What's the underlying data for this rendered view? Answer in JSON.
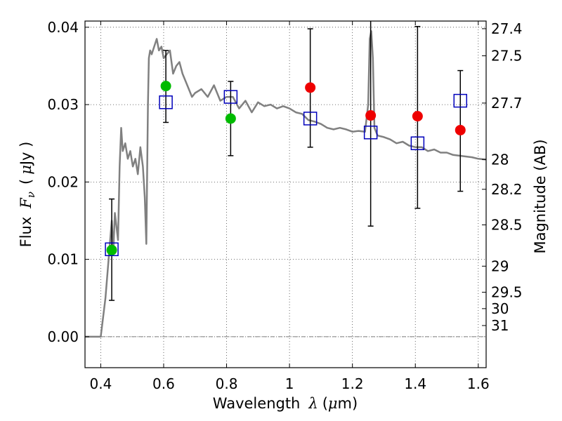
{
  "chart_data": {
    "type": "scatter",
    "xlabel": {
      "text": "Wavelength",
      "symbol": "λ",
      "unit_open": "(",
      "unit_mu": "μ",
      "unit_rest": "m)"
    },
    "ylabel": {
      "text": "Flux",
      "symbol": "F",
      "subscript": "ν",
      "unit_open": "(",
      "unit_mu": "μ",
      "unit_rest": "Jy )"
    },
    "y2label": "Magnitude (AB)",
    "xlim": [
      0.35,
      1.625
    ],
    "ylim": [
      -0.004,
      0.0408
    ],
    "xticks": [
      {
        "value": 0.4,
        "label": "0.4"
      },
      {
        "value": 0.6,
        "label": "0.6"
      },
      {
        "value": 0.8,
        "label": "0.8"
      },
      {
        "value": 1.0,
        "label": "1"
      },
      {
        "value": 1.2,
        "label": "1.2"
      },
      {
        "value": 1.4,
        "label": "1.4"
      },
      {
        "value": 1.6,
        "label": "1.6"
      }
    ],
    "yticks": [
      {
        "value": 0.0,
        "label": "0.00"
      },
      {
        "value": 0.01,
        "label": "0.01"
      },
      {
        "value": 0.02,
        "label": "0.02"
      },
      {
        "value": 0.03,
        "label": "0.03"
      },
      {
        "value": 0.04,
        "label": "0.04"
      }
    ],
    "magnitude_ticks": [
      {
        "mag": 27.4,
        "label": "27.4"
      },
      {
        "mag": 27.5,
        "label": "27.5"
      },
      {
        "mag": 27.7,
        "label": "27.7"
      },
      {
        "mag": 28.0,
        "label": "28"
      },
      {
        "mag": 28.2,
        "label": "28.2"
      },
      {
        "mag": 28.5,
        "label": "28.5"
      },
      {
        "mag": 29.0,
        "label": "29"
      },
      {
        "mag": 29.5,
        "label": "29.5"
      },
      {
        "mag": 30.0,
        "label": "30"
      },
      {
        "mag": 31.0,
        "label": "31"
      }
    ],
    "grid": true,
    "colors": {
      "model": "#808080",
      "green": "#00bb00",
      "red": "#ee0000",
      "square": "#0000bb",
      "errorbar": "#000000"
    },
    "model_spectrum": {
      "name": "model SED",
      "x": [
        0.35,
        0.4,
        0.415,
        0.425,
        0.435,
        0.44,
        0.445,
        0.455,
        0.46,
        0.465,
        0.47,
        0.478,
        0.486,
        0.494,
        0.502,
        0.51,
        0.518,
        0.526,
        0.534,
        0.54,
        0.545,
        0.55,
        0.553,
        0.557,
        0.562,
        0.57,
        0.578,
        0.585,
        0.593,
        0.6,
        0.61,
        0.62,
        0.63,
        0.64,
        0.65,
        0.66,
        0.67,
        0.68,
        0.69,
        0.7,
        0.72,
        0.74,
        0.76,
        0.78,
        0.8,
        0.82,
        0.84,
        0.86,
        0.88,
        0.9,
        0.92,
        0.94,
        0.96,
        0.98,
        1.0,
        1.02,
        1.04,
        1.06,
        1.08,
        1.1,
        1.12,
        1.14,
        1.16,
        1.18,
        1.2,
        1.22,
        1.24,
        1.25,
        1.255,
        1.26,
        1.265,
        1.27,
        1.28,
        1.3,
        1.32,
        1.34,
        1.36,
        1.38,
        1.4,
        1.42,
        1.44,
        1.46,
        1.48,
        1.5,
        1.52,
        1.54,
        1.56,
        1.58,
        1.6,
        1.625
      ],
      "y": [
        0.0,
        0.0,
        0.005,
        0.01,
        0.015,
        0.011,
        0.016,
        0.0125,
        0.022,
        0.027,
        0.024,
        0.025,
        0.023,
        0.024,
        0.022,
        0.023,
        0.021,
        0.0245,
        0.022,
        0.018,
        0.012,
        0.03,
        0.036,
        0.037,
        0.0365,
        0.0375,
        0.0385,
        0.037,
        0.0375,
        0.036,
        0.0365,
        0.037,
        0.034,
        0.035,
        0.0355,
        0.034,
        0.033,
        0.032,
        0.031,
        0.0315,
        0.032,
        0.031,
        0.0325,
        0.0305,
        0.031,
        0.031,
        0.0295,
        0.0305,
        0.029,
        0.0303,
        0.0298,
        0.03,
        0.0295,
        0.0298,
        0.0295,
        0.029,
        0.0288,
        0.028,
        0.0278,
        0.0275,
        0.027,
        0.0268,
        0.027,
        0.0268,
        0.0265,
        0.0266,
        0.0265,
        0.03,
        0.0385,
        0.0395,
        0.036,
        0.027,
        0.026,
        0.0258,
        0.0255,
        0.025,
        0.0252,
        0.0247,
        0.0245,
        0.0245,
        0.024,
        0.0242,
        0.0238,
        0.0238,
        0.0235,
        0.0234,
        0.0233,
        0.0232,
        0.023,
        0.0229
      ]
    },
    "error_bars": [
      {
        "x": 0.435,
        "low": 0.0047,
        "high": 0.0178
      },
      {
        "x": 0.607,
        "low": 0.0277,
        "high": 0.037
      },
      {
        "x": 0.813,
        "low": 0.0234,
        "high": 0.033
      },
      {
        "x": 1.066,
        "low": 0.0245,
        "high": 0.0398
      },
      {
        "x": 1.258,
        "low": 0.0143,
        "high": 0.0408
      },
      {
        "x": 1.407,
        "low": 0.0166,
        "high": 0.0401
      },
      {
        "x": 1.543,
        "low": 0.0188,
        "high": 0.0344
      }
    ],
    "series": [
      {
        "name": "green points",
        "marker": "circle",
        "points": [
          {
            "x": 0.435,
            "y": 0.0112
          },
          {
            "x": 0.607,
            "y": 0.0324
          },
          {
            "x": 0.813,
            "y": 0.0282
          }
        ]
      },
      {
        "name": "red points",
        "marker": "circle",
        "points": [
          {
            "x": 1.066,
            "y": 0.0322
          },
          {
            "x": 1.258,
            "y": 0.0286
          },
          {
            "x": 1.407,
            "y": 0.0285
          },
          {
            "x": 1.543,
            "y": 0.0267
          }
        ]
      },
      {
        "name": "model photometry",
        "marker": "open-square",
        "points": [
          {
            "x": 0.435,
            "y": 0.0113
          },
          {
            "x": 0.607,
            "y": 0.0303
          },
          {
            "x": 0.813,
            "y": 0.031
          },
          {
            "x": 1.066,
            "y": 0.0282
          },
          {
            "x": 1.258,
            "y": 0.0264
          },
          {
            "x": 1.407,
            "y": 0.025
          },
          {
            "x": 1.543,
            "y": 0.0305
          }
        ]
      }
    ]
  }
}
